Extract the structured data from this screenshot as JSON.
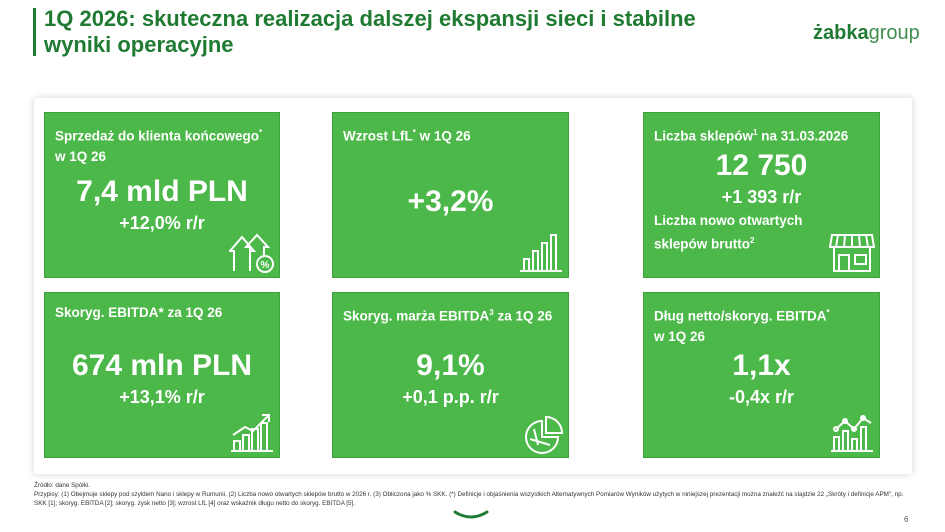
{
  "header": {
    "title": "1Q 2026: skuteczna realizacja dalszej ekspansji sieci i stabilne wyniki operacyjne",
    "logo_bold": "żabka",
    "logo_light": "group"
  },
  "cards": {
    "sales": {
      "label": "Sprzedaż do klienta końcowego",
      "label_sup": "*",
      "label2": "w 1Q 26",
      "value": "7,4 mld PLN",
      "change": "+12,0% r/r",
      "icon": "growth-percent-icon"
    },
    "lfl": {
      "label": "Wzrost LfL",
      "label_sup": "*",
      "label2": " w 1Q 26",
      "value": "+3,2%",
      "icon": "bar-chart-icon"
    },
    "stores": {
      "label": "Liczba sklepów",
      "label_sup": "1",
      "label2": " na 31.03.2026",
      "value": "12 750",
      "change": "+1 393 r/r",
      "extra": "Liczba nowo otwartych sklepów brutto",
      "extra_sup": "2",
      "icon": "store-icon"
    },
    "ebitda": {
      "label": "Skoryg. EBITDA* za 1Q 26",
      "value": "674 mln PLN",
      "change": "+13,1% r/r",
      "icon": "rising-chart-icon"
    },
    "margin": {
      "label": "Skoryg. marża EBITDA",
      "label_sup": "3",
      "label2": " za 1Q 26",
      "value": "9,1%",
      "change": "+0,1 p.p. r/r",
      "icon": "pie-chart-icon"
    },
    "debt": {
      "label": "Dług netto/skoryg. EBITDA",
      "label_sup": "*",
      "label2": "w 1Q 26",
      "value": "1,1x",
      "change": "-0,4x r/r",
      "icon": "analytics-icon"
    }
  },
  "footer": {
    "source": "Źródło: dane Spółki.",
    "notes": "Przypisy: (1) Obejmuje sklepy pod szyldem Nano i sklepy w Rumunii. (2) Liczba nowo otwartych sklepów brutto w 2026 r. (3) Obliczona jako % SKK. (*) Definicje i objaśnienia wszystkich Alternatywnych Pomiarów Wyników użytych w  niniejszej prezentacji można znaleźć na slajdzie 22 „Skróty i definicje APM\", np. SKK [1]; skoryg. EBITDA [2]; skoryg. zysk netto [3]; wzrost LfL [4] oraz wskaźnik długu netto do skoryg. EBITDA [5].",
    "page": "6"
  },
  "colors": {
    "green_dark": "#1f7a32",
    "card_green": "#4cb849"
  }
}
